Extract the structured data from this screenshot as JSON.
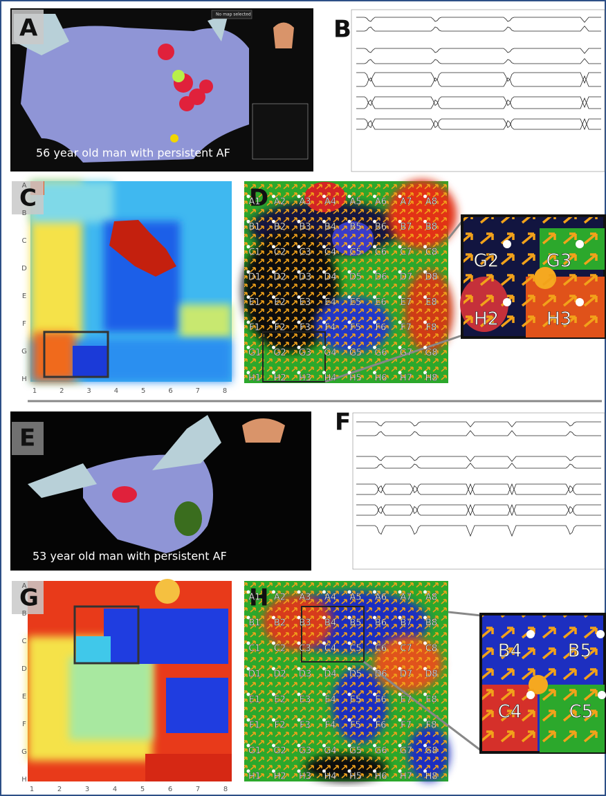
{
  "panel_a": {
    "label": "A",
    "caption": "56 year old man with persistent AF",
    "ui_text": "No map selected"
  },
  "panel_b": {
    "label": "B"
  },
  "panel_c": {
    "label": "C",
    "rows": [
      "A",
      "B",
      "C",
      "D",
      "E",
      "F",
      "G",
      "H"
    ],
    "cols": [
      "1",
      "2",
      "3",
      "4",
      "5",
      "6",
      "7",
      "8"
    ]
  },
  "panel_d": {
    "label": "D",
    "electrodes": [
      [
        "A1",
        "A2",
        "A3",
        "A4",
        "A5",
        "A6",
        "A7",
        "A8"
      ],
      [
        "B1",
        "B2",
        "B3",
        "B4",
        "B5",
        "B6",
        "B7",
        "B8"
      ],
      [
        "C1",
        "C2",
        "C3",
        "C4",
        "C5",
        "C6",
        "C7",
        "C8"
      ],
      [
        "D1",
        "D2",
        "D3",
        "D4",
        "D5",
        "D6",
        "D7",
        "D8"
      ],
      [
        "E1",
        "E2",
        "E3",
        "E4",
        "E5",
        "E6",
        "E7",
        "E8"
      ],
      [
        "F1",
        "F2",
        "F3",
        "F4",
        "F5",
        "F6",
        "F7",
        "F8"
      ],
      [
        "G1",
        "G2",
        "G3",
        "G4",
        "G5",
        "G6",
        "G7",
        "G8"
      ],
      [
        "H1",
        "H2",
        "H3",
        "H4",
        "H5",
        "H6",
        "H7",
        "H8"
      ]
    ],
    "inset": [
      "G2",
      "G3",
      "H2",
      "H3"
    ]
  },
  "panel_e": {
    "label": "E",
    "caption": "53 year old man with persistent AF"
  },
  "panel_f": {
    "label": "F"
  },
  "panel_g": {
    "label": "G",
    "rows": [
      "A",
      "B",
      "C",
      "D",
      "E",
      "F",
      "G",
      "H"
    ],
    "cols": [
      "1",
      "2",
      "3",
      "4",
      "5",
      "6",
      "7",
      "8"
    ]
  },
  "panel_h": {
    "label": "H",
    "electrodes": [
      [
        "A1",
        "A2",
        "A3",
        "A4",
        "A5",
        "A6",
        "A7",
        "A8"
      ],
      [
        "B1",
        "B2",
        "B3",
        "B4",
        "B5",
        "B6",
        "B7",
        "B8"
      ],
      [
        "C1",
        "C2",
        "C3",
        "C4",
        "C5",
        "C6",
        "C7",
        "C8"
      ],
      [
        "D1",
        "D2",
        "D3",
        "D4",
        "D5",
        "D6",
        "D7",
        "D8"
      ],
      [
        "E1",
        "E2",
        "E3",
        "E4",
        "E5",
        "E6",
        "E7",
        "E8"
      ],
      [
        "F1",
        "F2",
        "F3",
        "F4",
        "F5",
        "F6",
        "F7",
        "F8"
      ],
      [
        "G1",
        "G2",
        "G3",
        "G4",
        "G5",
        "G6",
        "G7",
        "G8"
      ],
      [
        "H1",
        "H2",
        "H3",
        "H4",
        "H5",
        "H6",
        "H7",
        "H8"
      ]
    ],
    "inset": [
      "B4",
      "B5",
      "C4",
      "C5"
    ]
  }
}
